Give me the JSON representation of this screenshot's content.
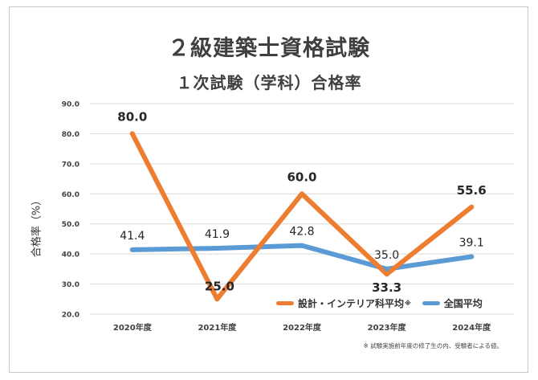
{
  "colors": {
    "series_design": "#ED7D31",
    "series_national": "#5B9BD5",
    "grid": "#d9d9d9",
    "text": "#404040"
  },
  "page": {
    "title": "２級建築士資格試験",
    "subtitle": "１次試験（学科）合格率",
    "footnote": "※ 試験実施前年度の修了生の内、受験者による値。"
  },
  "legend": {
    "design_label": "設計・インテリア科平均",
    "design_mark": "※",
    "national_label": "全国平均"
  },
  "chart_data": {
    "type": "line",
    "categories": [
      "2020年度",
      "2021年度",
      "2022年度",
      "2023年度",
      "2024年度"
    ],
    "series": [
      {
        "name": "設計・インテリア科平均",
        "values": [
          80.0,
          25.0,
          60.0,
          33.3,
          55.6
        ],
        "color": "#ED7D31",
        "data_labels": [
          "80.0",
          "25.0",
          "60.0",
          "33.3",
          "55.6"
        ]
      },
      {
        "name": "全国平均",
        "values": [
          41.4,
          41.9,
          42.8,
          35.0,
          39.1
        ],
        "color": "#5B9BD5",
        "data_labels": [
          "41.4",
          "41.9",
          "42.8",
          "35.0",
          "39.1"
        ]
      }
    ],
    "ylabel": "合格率（%）",
    "ylim": [
      20.0,
      90.0
    ],
    "yticks": [
      "20.0",
      "30.0",
      "40.0",
      "50.0",
      "60.0",
      "70.0",
      "80.0",
      "90.0"
    ],
    "grid": true,
    "legend_position": "bottom-right"
  }
}
